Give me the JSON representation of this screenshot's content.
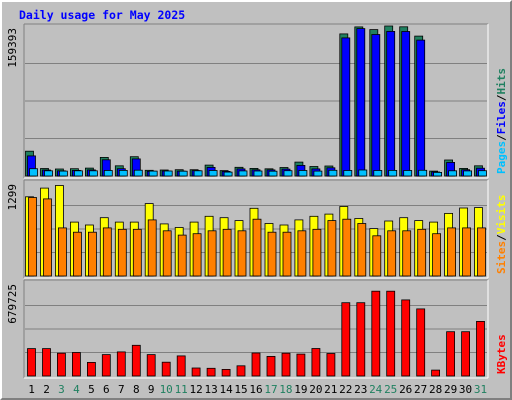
{
  "chart_data": {
    "type": "bar",
    "title": "Daily usage for May 2025",
    "categories": [
      "1",
      "2",
      "3",
      "4",
      "5",
      "6",
      "7",
      "8",
      "9",
      "10",
      "11",
      "12",
      "13",
      "14",
      "15",
      "16",
      "17",
      "18",
      "19",
      "20",
      "21",
      "22",
      "23",
      "24",
      "25",
      "26",
      "27",
      "28",
      "29",
      "30",
      "31"
    ],
    "weekend_days": [
      "3",
      "4",
      "10",
      "11",
      "17",
      "18",
      "24",
      "25",
      "31"
    ],
    "panels": [
      {
        "name": "hits-files-pages",
        "ymax_label": "159393",
        "ymax": 159393,
        "side_labels": [
          "Pages",
          "/",
          "Files",
          "/",
          "Hits"
        ],
        "series": [
          {
            "name": "Hits",
            "color": "#208060",
            "values": [
              26400,
              8000,
              7400,
              7800,
              8400,
              19800,
              10800,
              20500,
              6100,
              6400,
              6700,
              6700,
              11600,
              5700,
              9200,
              8100,
              7700,
              9000,
              14800,
              10100,
              10600,
              151000,
              158400,
              155600,
              159400,
              158500,
              148700,
              5200,
              17000,
              8100,
              10800
            ]
          },
          {
            "name": "Files",
            "color": "#0000ff",
            "values": [
              21400,
              6400,
              5500,
              5900,
              6500,
              17200,
              7800,
              18200,
              5000,
              5300,
              5200,
              5700,
              9100,
              4900,
              7500,
              6600,
              6500,
              7300,
              11300,
              7500,
              8700,
              146800,
              156600,
              150400,
              153700,
              153500,
              144400,
              4300,
              14400,
              6700,
              8300
            ]
          },
          {
            "name": "Pages",
            "color": "#00c0ff",
            "values": [
              7800,
              5500,
              5200,
              5500,
              5500,
              5800,
              5900,
              6200,
              5200,
              5300,
              5100,
              5500,
              5800,
              4100,
              5400,
              5300,
              5100,
              5600,
              5800,
              5200,
              6100,
              5800,
              6400,
              5800,
              5900,
              5800,
              6100,
              3800,
              5500,
              5400,
              5600
            ]
          }
        ]
      },
      {
        "name": "visits-sites",
        "ymax_label": "1299",
        "ymax": 1299,
        "side_labels": [
          "Sites",
          "/",
          "Visits"
        ],
        "series": [
          {
            "name": "Visits",
            "color": "#ffff00",
            "values": [
              1095,
              1215,
              1250,
              745,
              705,
              805,
              745,
              745,
              1000,
              720,
              670,
              745,
              825,
              805,
              765,
              935,
              725,
              705,
              775,
              825,
              855,
              960,
              795,
              655,
              760,
              805,
              765,
              745,
              865,
              940,
              945
            ]
          },
          {
            "name": "Sites",
            "color": "#ff8000",
            "values": [
              1085,
              1065,
              665,
              605,
              605,
              665,
              645,
              645,
              775,
              625,
              565,
              585,
              625,
              645,
              625,
              785,
              605,
              605,
              625,
              645,
              765,
              785,
              725,
              555,
              625,
              625,
              645,
              585,
              665,
              665,
              665
            ]
          }
        ]
      },
      {
        "name": "kbytes",
        "ymax_label": "679725",
        "ymax": 679725,
        "side_labels": [
          "KBytes"
        ],
        "series": [
          {
            "name": "KBytes",
            "color": "#ff0000",
            "values": [
              198000,
              198000,
              165000,
              170000,
              98000,
              155000,
              174000,
              222000,
              155000,
              100000,
              145000,
              58000,
              56000,
              48000,
              74000,
              166000,
              142000,
              165000,
              158000,
              199000,
              163000,
              530000,
              530000,
              613000,
              613000,
              550000,
              485000,
              43000,
              320000,
              320000,
              395000
            ]
          }
        ]
      }
    ]
  }
}
